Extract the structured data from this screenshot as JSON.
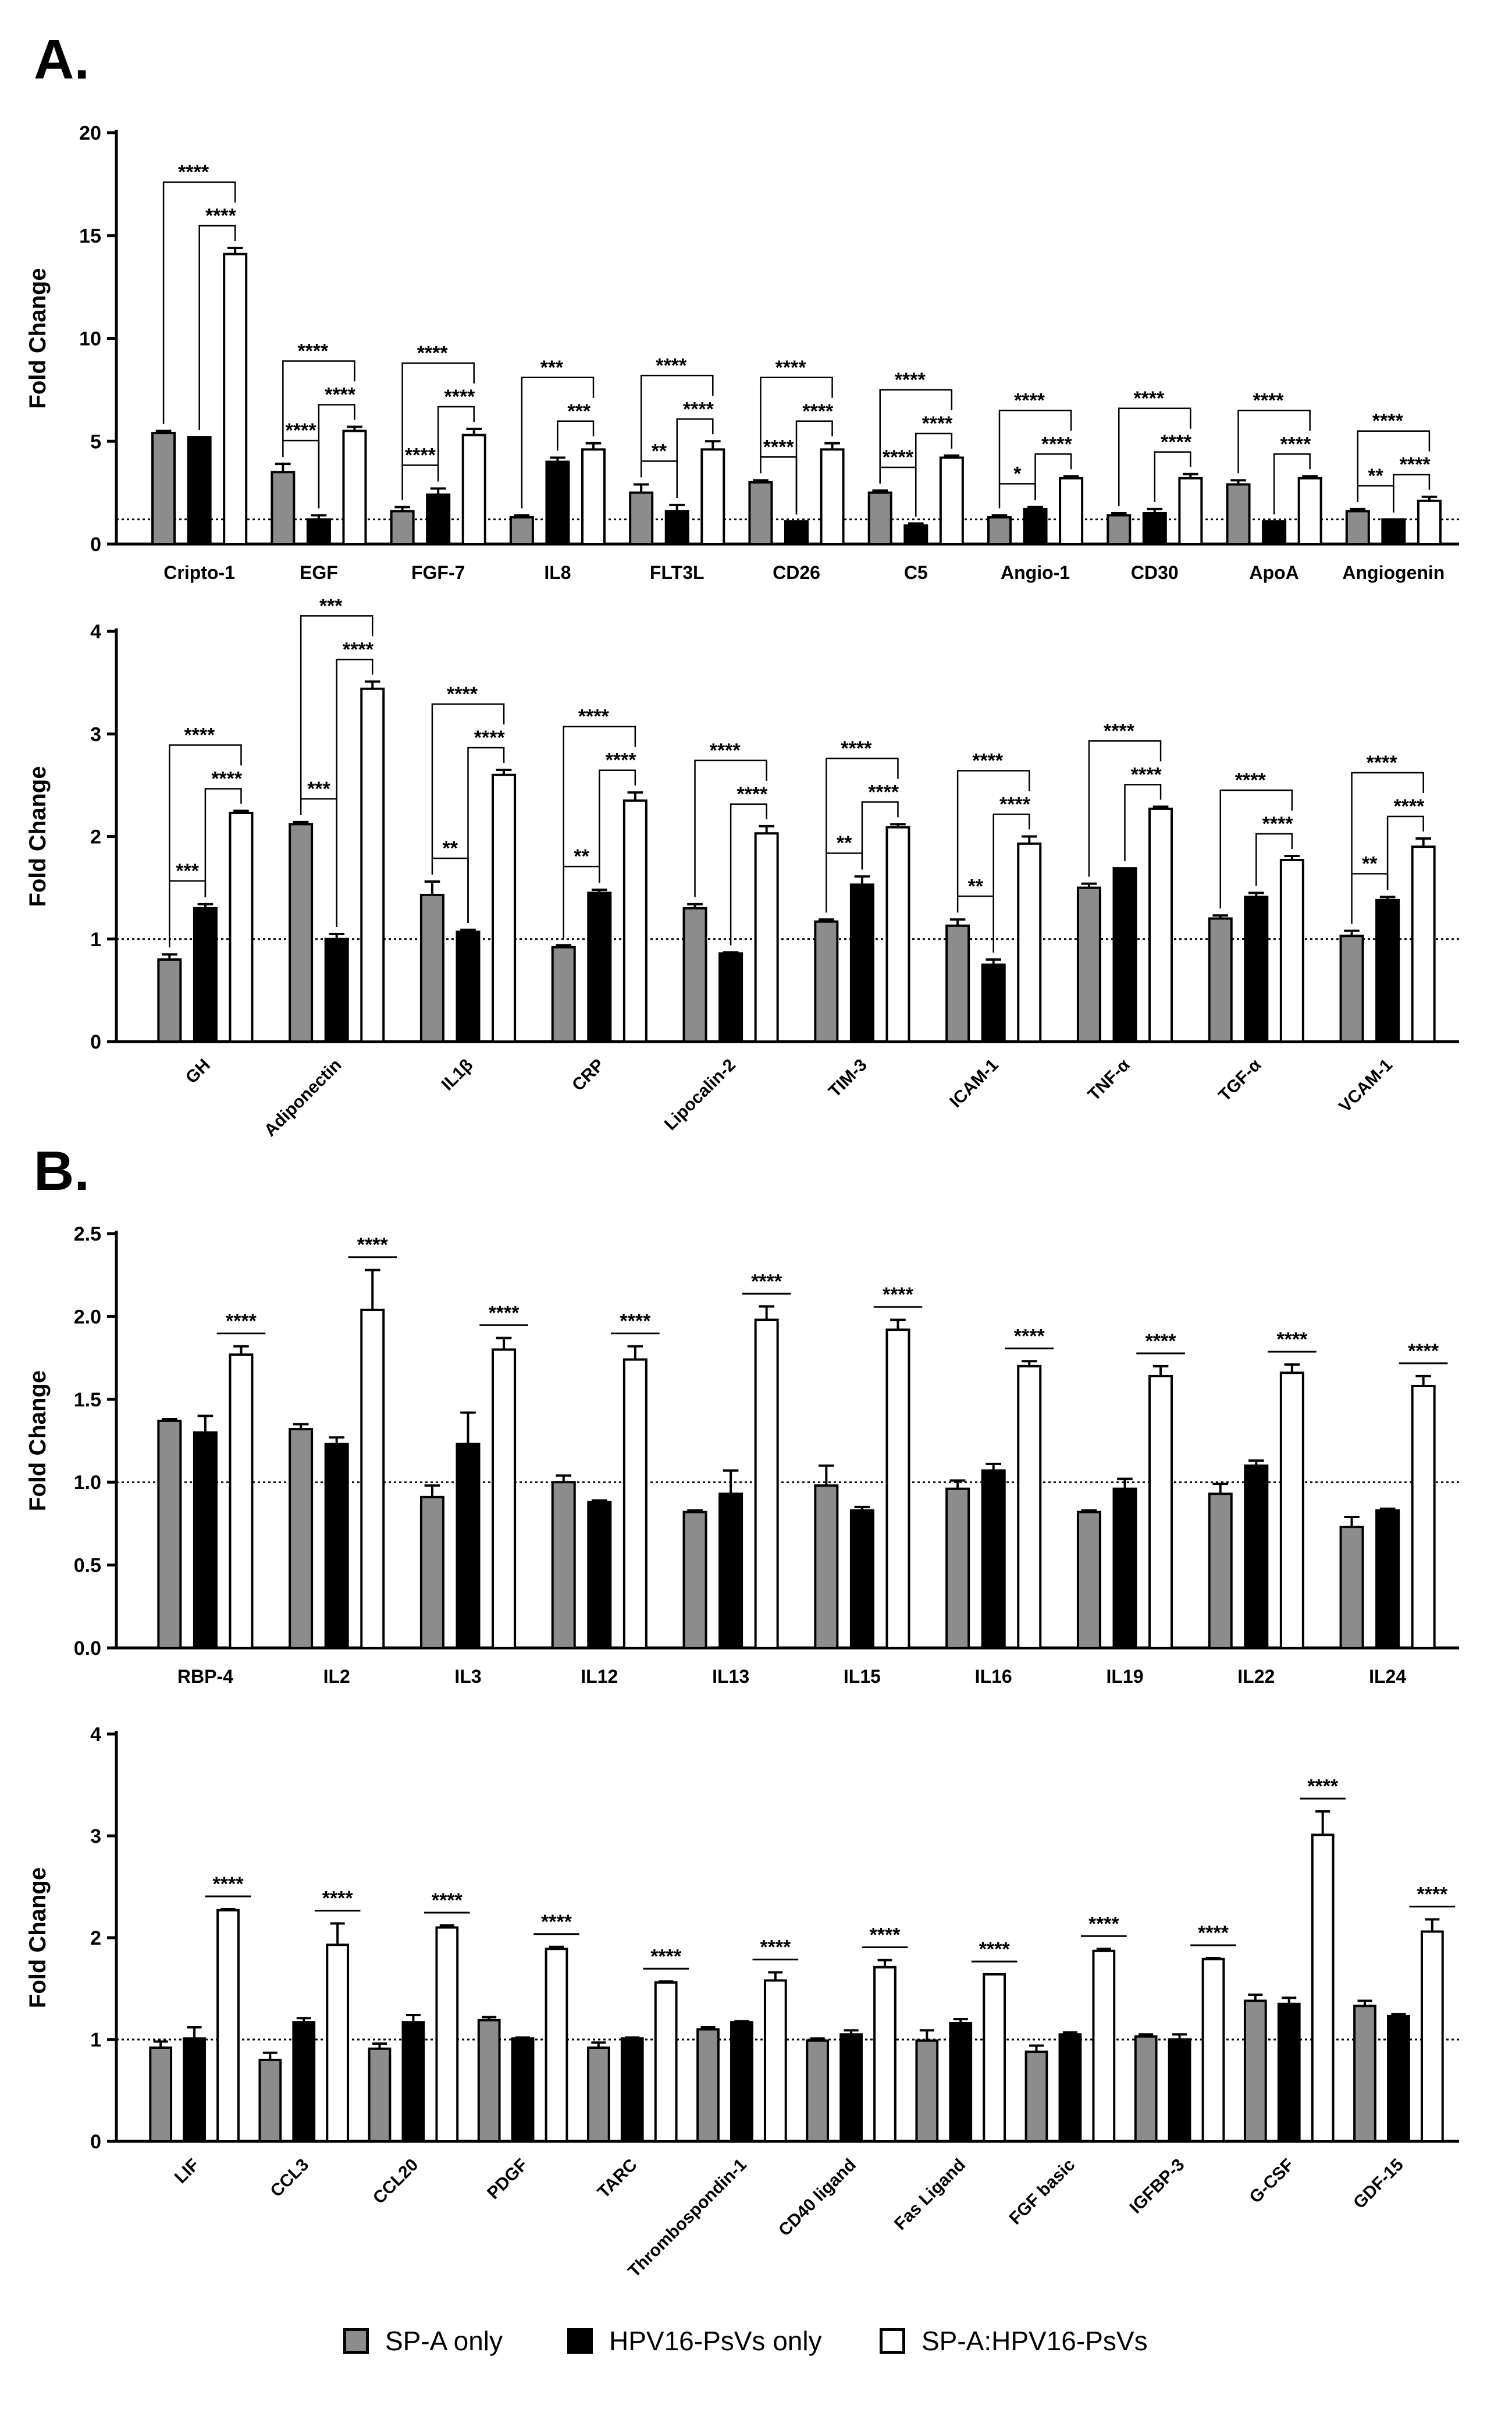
{
  "panel_labels": [
    "A.",
    "B."
  ],
  "legend": [
    {
      "name": "SP-A only",
      "color": "#8c8c8c"
    },
    {
      "name": "HPV16-PsVs only",
      "color": "#000000"
    },
    {
      "name": "SP-A:HPV16-PsVs",
      "color": "#ffffff"
    }
  ],
  "chart_data": [
    {
      "type": "bar",
      "title": "",
      "xlabel": "",
      "ylabel": "Fold Change",
      "ylim": [
        0,
        20
      ],
      "yticks": [
        0,
        5,
        10,
        15,
        20
      ],
      "reference_line": 1.2,
      "categories": [
        "Cripto-1",
        "EGF",
        "FGF-7",
        "IL8",
        "FLT3L",
        "CD26",
        "C5",
        "Angio-1",
        "CD30",
        "ApoA",
        "Angiogenin"
      ],
      "series": [
        {
          "name": "SP-A only",
          "values": [
            5.4,
            3.5,
            1.6,
            1.3,
            2.5,
            3.0,
            2.5,
            1.3,
            1.4,
            2.9,
            1.6
          ],
          "errors": [
            0.1,
            0.4,
            0.2,
            0.1,
            0.4,
            0.1,
            0.1,
            0.1,
            0.1,
            0.2,
            0.1
          ]
        },
        {
          "name": "HPV16-PsVs only",
          "values": [
            5.2,
            1.2,
            2.4,
            4.0,
            1.6,
            1.1,
            0.9,
            1.7,
            1.5,
            1.1,
            1.2
          ],
          "errors": [
            0.0,
            0.2,
            0.3,
            0.2,
            0.3,
            0.0,
            0.1,
            0.1,
            0.2,
            0.0,
            0.0
          ]
        },
        {
          "name": "SP-A:HPV16-PsVs",
          "values": [
            14.1,
            5.5,
            5.3,
            4.6,
            4.6,
            4.6,
            4.2,
            3.2,
            3.2,
            3.2,
            2.1
          ],
          "errors": [
            0.3,
            0.2,
            0.3,
            0.3,
            0.4,
            0.3,
            0.1,
            0.1,
            0.2,
            0.1,
            0.2
          ]
        }
      ],
      "significance": [
        {
          "category": "Cripto-1",
          "outer": "****",
          "inner": "****"
        },
        {
          "category": "EGF",
          "outer": "****",
          "inner": "****",
          "lower": "****"
        },
        {
          "category": "FGF-7",
          "outer": "****",
          "inner": "****",
          "lower": "****"
        },
        {
          "category": "IL8",
          "outer": "***",
          "inner": "***"
        },
        {
          "category": "FLT3L",
          "outer": "****",
          "inner": "****",
          "lower": "**"
        },
        {
          "category": "CD26",
          "outer": "****",
          "inner": "****",
          "lower": "****"
        },
        {
          "category": "C5",
          "outer": "****",
          "inner": "****",
          "lower": "****"
        },
        {
          "category": "Angio-1",
          "outer": "****",
          "inner": "****",
          "lower": "*"
        },
        {
          "category": "CD30",
          "outer": "****",
          "inner": "****"
        },
        {
          "category": "ApoA",
          "outer": "****",
          "inner": "****"
        },
        {
          "category": "Angiogenin",
          "outer": "****",
          "inner": "****",
          "lower": "**"
        }
      ],
      "xtick_rotation": 0
    },
    {
      "type": "bar",
      "title": "",
      "xlabel": "",
      "ylabel": "Fold Change",
      "ylim": [
        0,
        4
      ],
      "yticks": [
        0,
        1,
        2,
        3,
        4
      ],
      "reference_line": 1.0,
      "categories": [
        "GH",
        "Adiponectin",
        "IL1β",
        "CRP",
        "Lipocalin-2",
        "TIM-3",
        "ICAM-1",
        "TNF-α",
        "TGF-α",
        "VCAM-1"
      ],
      "series": [
        {
          "name": "SP-A only",
          "values": [
            0.8,
            2.12,
            1.43,
            0.92,
            1.3,
            1.17,
            1.13,
            1.5,
            1.2,
            1.03
          ],
          "errors": [
            0.05,
            0.02,
            0.13,
            0.02,
            0.04,
            0.02,
            0.06,
            0.04,
            0.03,
            0.05
          ]
        },
        {
          "name": "HPV16-PsVs only",
          "values": [
            1.3,
            1.0,
            1.07,
            1.45,
            0.86,
            1.53,
            0.75,
            1.69,
            1.41,
            1.38
          ],
          "errors": [
            0.04,
            0.05,
            0.02,
            0.03,
            0.01,
            0.08,
            0.05,
            0.0,
            0.04,
            0.03
          ]
        },
        {
          "name": "SP-A:HPV16-PsVs",
          "values": [
            2.23,
            3.44,
            2.6,
            2.35,
            2.03,
            2.09,
            1.93,
            2.27,
            1.77,
            1.9
          ],
          "errors": [
            0.02,
            0.07,
            0.05,
            0.08,
            0.07,
            0.03,
            0.07,
            0.02,
            0.04,
            0.08
          ]
        }
      ],
      "significance": [
        {
          "category": "GH",
          "outer": "****",
          "inner": "****",
          "lower": "***"
        },
        {
          "category": "Adiponectin",
          "outer": "***",
          "inner": "****",
          "lower": "***"
        },
        {
          "category": "IL1β",
          "outer": "****",
          "inner": "****",
          "lower": "**"
        },
        {
          "category": "CRP",
          "outer": "****",
          "inner": "****",
          "lower": "**"
        },
        {
          "category": "Lipocalin-2",
          "outer": "****",
          "inner": "****"
        },
        {
          "category": "TIM-3",
          "outer": "****",
          "inner": "****",
          "lower": "**"
        },
        {
          "category": "ICAM-1",
          "outer": "****",
          "inner": "****",
          "lower": "**"
        },
        {
          "category": "TNF-α",
          "outer": "****",
          "inner": "****"
        },
        {
          "category": "TGF-α",
          "outer": "****",
          "inner": "****"
        },
        {
          "category": "VCAM-1",
          "outer": "****",
          "inner": "****",
          "lower": "**"
        }
      ],
      "xtick_rotation": -45
    },
    {
      "type": "bar",
      "title": "",
      "xlabel": "",
      "ylabel": "Fold Change",
      "ylim": [
        0,
        2.5
      ],
      "yticks": [
        0.0,
        0.5,
        1.0,
        1.5,
        2.0,
        2.5
      ],
      "reference_line": 1.0,
      "categories": [
        "RBP-4",
        "IL2",
        "IL3",
        "IL12",
        "IL13",
        "IL15",
        "IL16",
        "IL19",
        "IL22",
        "IL24"
      ],
      "series": [
        {
          "name": "SP-A only",
          "values": [
            1.37,
            1.32,
            0.91,
            1.0,
            0.82,
            0.98,
            0.96,
            0.82,
            0.93,
            0.73
          ],
          "errors": [
            0.01,
            0.03,
            0.07,
            0.04,
            0.01,
            0.12,
            0.05,
            0.01,
            0.06,
            0.06
          ]
        },
        {
          "name": "HPV16-PsVs only",
          "values": [
            1.3,
            1.23,
            1.23,
            0.88,
            0.93,
            0.83,
            1.07,
            0.96,
            1.1,
            0.83
          ],
          "errors": [
            0.1,
            0.04,
            0.19,
            0.01,
            0.14,
            0.02,
            0.04,
            0.06,
            0.03,
            0.01
          ]
        },
        {
          "name": "SP-A:HPV16-PsVs",
          "values": [
            1.77,
            2.04,
            1.8,
            1.74,
            1.98,
            1.92,
            1.7,
            1.64,
            1.66,
            1.58
          ],
          "errors": [
            0.05,
            0.24,
            0.07,
            0.08,
            0.08,
            0.06,
            0.03,
            0.06,
            0.05,
            0.06
          ]
        }
      ],
      "significance": [
        {
          "category": "RBP-4",
          "outer": "****"
        },
        {
          "category": "IL2",
          "outer": "****"
        },
        {
          "category": "IL3",
          "outer": "****"
        },
        {
          "category": "IL12",
          "outer": "****"
        },
        {
          "category": "IL13",
          "outer": "****"
        },
        {
          "category": "IL15",
          "outer": "****"
        },
        {
          "category": "IL16",
          "outer": "****"
        },
        {
          "category": "IL19",
          "outer": "****"
        },
        {
          "category": "IL22",
          "outer": "****"
        },
        {
          "category": "IL24",
          "outer": "****"
        }
      ],
      "xtick_rotation": 0
    },
    {
      "type": "bar",
      "title": "",
      "xlabel": "",
      "ylabel": "Fold Change",
      "ylim": [
        0,
        4
      ],
      "yticks": [
        0,
        1,
        2,
        3,
        4
      ],
      "reference_line": 1.0,
      "categories": [
        "LIF",
        "CCL3",
        "CCL20",
        "PDGF",
        "TARC",
        "Thrombospondin-1",
        "CD40 ligand",
        "Fas Ligand",
        "FGF basic",
        "IGFBP-3",
        "G-CSF",
        "GDF-15"
      ],
      "series": [
        {
          "name": "SP-A only",
          "values": [
            0.92,
            0.8,
            0.91,
            1.19,
            0.92,
            1.1,
            0.99,
            0.99,
            0.88,
            1.03,
            1.38,
            1.33
          ],
          "errors": [
            0.06,
            0.07,
            0.05,
            0.03,
            0.05,
            0.02,
            0.02,
            0.1,
            0.06,
            0.02,
            0.06,
            0.05
          ]
        },
        {
          "name": "HPV16-PsVs only",
          "values": [
            1.01,
            1.17,
            1.17,
            1.01,
            1.01,
            1.17,
            1.05,
            1.16,
            1.05,
            1.0,
            1.35,
            1.23
          ],
          "errors": [
            0.11,
            0.04,
            0.07,
            0.01,
            0.01,
            0.01,
            0.04,
            0.04,
            0.02,
            0.05,
            0.06,
            0.02
          ]
        },
        {
          "name": "SP-A:HPV16-PsVs",
          "values": [
            2.27,
            1.93,
            2.1,
            1.89,
            1.56,
            1.58,
            1.71,
            1.64,
            1.87,
            1.79,
            3.01,
            2.06
          ],
          "errors": [
            0.01,
            0.21,
            0.02,
            0.02,
            0.01,
            0.08,
            0.07,
            0.0,
            0.02,
            0.01,
            0.23,
            0.12
          ]
        }
      ],
      "significance": [
        {
          "category": "LIF",
          "outer": "****"
        },
        {
          "category": "CCL3",
          "outer": "****"
        },
        {
          "category": "CCL20",
          "outer": "****"
        },
        {
          "category": "PDGF",
          "outer": "****"
        },
        {
          "category": "TARC",
          "outer": "****"
        },
        {
          "category": "Thrombospondin-1",
          "outer": "****"
        },
        {
          "category": "CD40 ligand",
          "outer": "****"
        },
        {
          "category": "Fas Ligand",
          "outer": "****"
        },
        {
          "category": "FGF basic",
          "outer": "****"
        },
        {
          "category": "IGFBP-3",
          "outer": "****"
        },
        {
          "category": "G-CSF",
          "outer": "****"
        },
        {
          "category": "GDF-15",
          "outer": "****"
        }
      ],
      "xtick_rotation": -45
    }
  ]
}
